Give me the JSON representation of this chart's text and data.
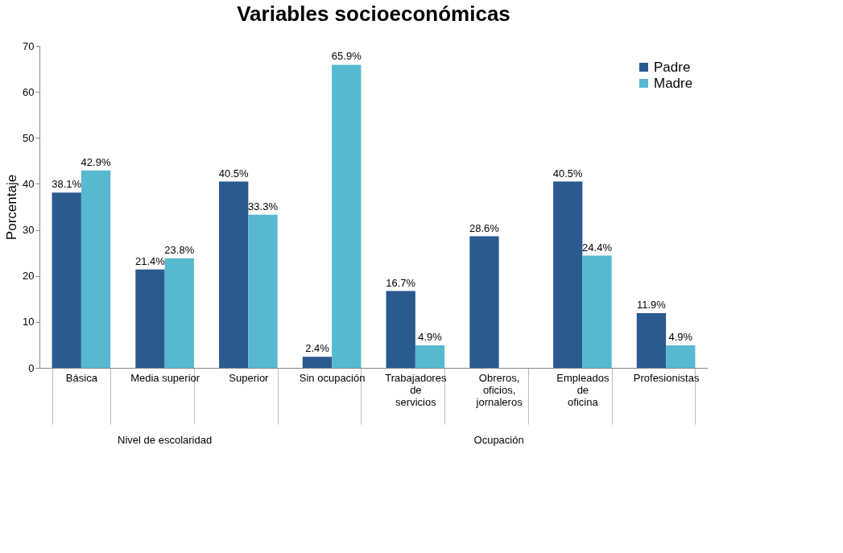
{
  "chart_data": {
    "type": "bar",
    "title": "Variables socioeconómicas",
    "ylabel": "Porcentaje",
    "categories": [
      "Básica",
      "Media superior",
      "Superior",
      "Sin ocupación",
      "Trabajadores de servicios",
      "Obreros, oficios, jornaleros",
      "Empleados de oficina",
      "Profesionistas"
    ],
    "series": [
      {
        "name": "Padre",
        "color": "#2a5a8f",
        "values": [
          38.1,
          21.4,
          40.5,
          2.4,
          16.7,
          28.6,
          40.5,
          11.9
        ],
        "value_labels": [
          "38.1%",
          "21.4%",
          "40.5%",
          "2.4%",
          "16.7%",
          "28.6%",
          "40.5%",
          "11.9%"
        ]
      },
      {
        "name": "Madre",
        "color": "#56b9d0",
        "values": [
          42.9,
          23.8,
          33.3,
          65.9,
          4.9,
          null,
          24.4,
          4.9
        ],
        "value_labels": [
          "42.9%",
          "23.8%",
          "33.3%",
          "65.9%",
          "4.9%",
          null,
          "24.4%",
          "4.9%"
        ]
      }
    ],
    "annotations": [
      "Nivel de escolaridad",
      "Ocupación"
    ],
    "ylim": [
      0,
      70
    ],
    "yticks": [
      0,
      10,
      20,
      30,
      40,
      50,
      60,
      70
    ],
    "grid": false,
    "legend": "top right"
  }
}
